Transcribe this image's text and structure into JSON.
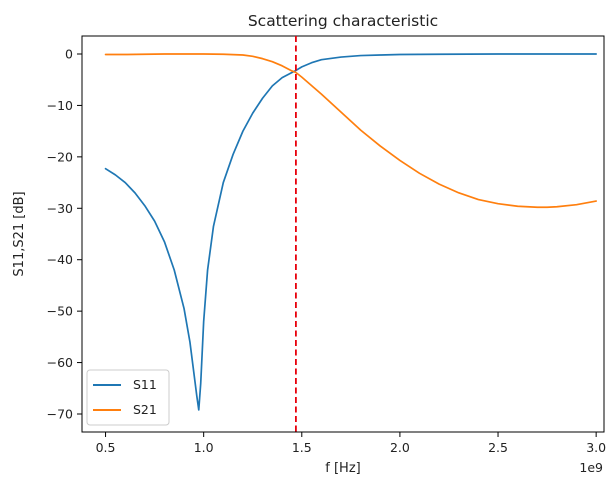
{
  "chart_data": {
    "type": "line",
    "title": "Scattering characteristic",
    "xlabel": "f [Hz]",
    "ylabel": "S11,S21 [dB]",
    "x_offset_label": "1e9",
    "xlim": [
      0.38,
      3.04
    ],
    "ylim": [
      -73.5,
      3.5
    ],
    "x_ticks": [
      {
        "value": 0.5,
        "label": "0.5"
      },
      {
        "value": 1.0,
        "label": "1.0"
      },
      {
        "value": 1.5,
        "label": "1.5"
      },
      {
        "value": 2.0,
        "label": "2.0"
      },
      {
        "value": 2.5,
        "label": "2.5"
      },
      {
        "value": 3.0,
        "label": "3.0"
      }
    ],
    "y_ticks": [
      {
        "value": 0,
        "label": "0"
      },
      {
        "value": -10,
        "label": "−10"
      },
      {
        "value": -20,
        "label": "−20"
      },
      {
        "value": -30,
        "label": "−30"
      },
      {
        "value": -40,
        "label": "−40"
      },
      {
        "value": -50,
        "label": "−50"
      },
      {
        "value": -60,
        "label": "−60"
      },
      {
        "value": -70,
        "label": "−70"
      }
    ],
    "grid": false,
    "legend_position": "lower-left",
    "vline": {
      "x": 1.47,
      "color": "#e8000b",
      "style": "dashed"
    },
    "series": [
      {
        "name": "S11",
        "color": "#1f77b4",
        "x": [
          0.5,
          0.55,
          0.6,
          0.65,
          0.7,
          0.75,
          0.8,
          0.85,
          0.9,
          0.93,
          0.95,
          0.965,
          0.975,
          0.985,
          1.0,
          1.02,
          1.05,
          1.1,
          1.15,
          1.2,
          1.25,
          1.3,
          1.35,
          1.4,
          1.45,
          1.47,
          1.5,
          1.55,
          1.6,
          1.7,
          1.8,
          1.9,
          2.0,
          2.2,
          2.5,
          2.8,
          3.0
        ],
        "y": [
          -22.3,
          -23.5,
          -25.0,
          -27.0,
          -29.5,
          -32.5,
          -36.5,
          -42.0,
          -49.5,
          -56.0,
          -62.0,
          -66.5,
          -69.2,
          -64.0,
          -52.0,
          -42.0,
          -33.5,
          -25.0,
          -19.5,
          -15.0,
          -11.5,
          -8.6,
          -6.2,
          -4.6,
          -3.6,
          -3.2,
          -2.5,
          -1.7,
          -1.1,
          -0.6,
          -0.3,
          -0.2,
          -0.1,
          -0.05,
          0.0,
          0.0,
          0.0
        ]
      },
      {
        "name": "S21",
        "color": "#ff7f0e",
        "x": [
          0.5,
          0.6,
          0.7,
          0.8,
          0.9,
          1.0,
          1.1,
          1.2,
          1.25,
          1.3,
          1.35,
          1.4,
          1.45,
          1.47,
          1.5,
          1.6,
          1.7,
          1.8,
          1.9,
          2.0,
          2.1,
          2.2,
          2.3,
          2.4,
          2.5,
          2.6,
          2.7,
          2.75,
          2.8,
          2.9,
          3.0
        ],
        "y": [
          -0.1,
          -0.1,
          -0.05,
          0.0,
          0.0,
          0.0,
          -0.05,
          -0.2,
          -0.45,
          -0.9,
          -1.5,
          -2.3,
          -3.3,
          -3.6,
          -4.5,
          -7.8,
          -11.3,
          -14.8,
          -17.9,
          -20.7,
          -23.2,
          -25.3,
          -27.0,
          -28.3,
          -29.1,
          -29.6,
          -29.8,
          -29.8,
          -29.7,
          -29.3,
          -28.6
        ]
      }
    ]
  }
}
